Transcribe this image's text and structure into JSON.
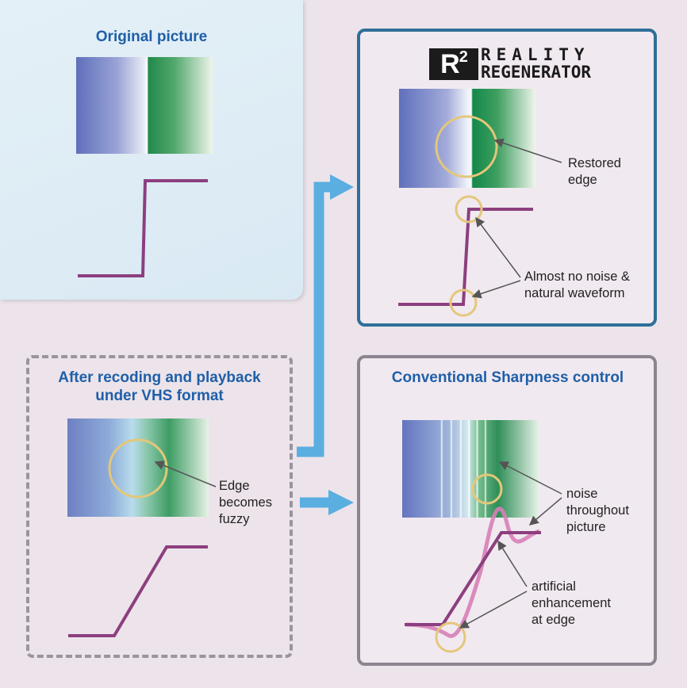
{
  "panels": {
    "original": {
      "title": "Original picture"
    },
    "r2": {
      "logo_mark": "R",
      "logo_sup": "2",
      "logo_line1": "REALITY",
      "logo_line2": "REGENERATOR",
      "callout_edge": [
        "Restored",
        "edge"
      ],
      "callout_noise": [
        "Almost no noise &",
        "natural waveform"
      ]
    },
    "vhs": {
      "title": [
        "After recoding and playback",
        "under VHS format"
      ],
      "callout_edge": [
        "Edge",
        "becomes",
        "fuzzy"
      ]
    },
    "conventional": {
      "title": "Conventional Sharpness control",
      "callout_noise": [
        "noise",
        "throughout",
        "picture"
      ],
      "callout_enhancement": [
        "artificial",
        "enhancement",
        "at edge"
      ]
    }
  },
  "colors": {
    "title_blue": "#1f5fa8",
    "waveform": "#8c3f7f",
    "waveform_soft": "#d77fb7",
    "arrow": "#5aaee0",
    "circle": "#e4c77a",
    "r2_border": "#2f6f98",
    "conv_border": "#8c8590"
  }
}
